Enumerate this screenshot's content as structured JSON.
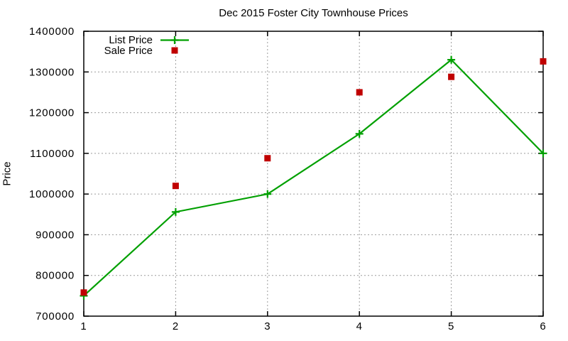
{
  "chart_data": {
    "type": "line",
    "title": "Dec 2015 Foster City Townhouse Prices",
    "xlabel": "",
    "ylabel": "Price",
    "x": [
      1,
      2,
      3,
      4,
      5,
      6
    ],
    "series": [
      {
        "name": "List Price",
        "style": "linespoints",
        "marker": "plus",
        "color": "#00a000",
        "values": [
          750000,
          956000,
          1000000,
          1148000,
          1330000,
          1100000
        ]
      },
      {
        "name": "Sale Price",
        "style": "points",
        "marker": "filled-square",
        "color": "#c00000",
        "values": [
          758000,
          1020000,
          1088000,
          1250000,
          1288000,
          1326000
        ]
      }
    ],
    "xlim": [
      1,
      6
    ],
    "ylim": [
      700000,
      1400000
    ],
    "x_ticks": [
      1,
      2,
      3,
      4,
      5,
      6
    ],
    "y_ticks": [
      700000,
      800000,
      900000,
      1000000,
      1100000,
      1200000,
      1300000,
      1400000
    ],
    "grid": true,
    "grid_style": "dashed",
    "legend_position": "top-left-inside"
  },
  "colors": {
    "background": "#ffffff",
    "axis": "#000000",
    "grid": "#9c9c9c",
    "list_price": "#00a000",
    "sale_price": "#c00000"
  }
}
